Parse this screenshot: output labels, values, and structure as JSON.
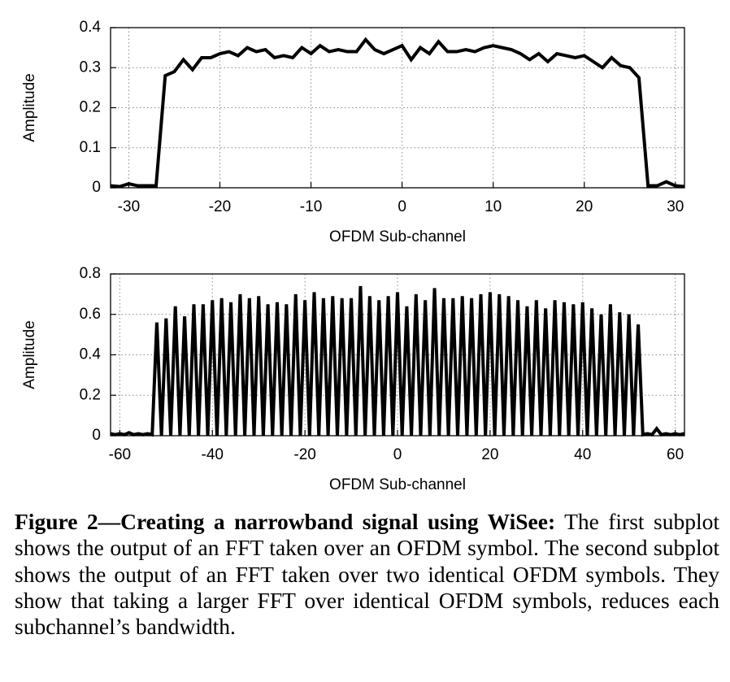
{
  "chart_data": [
    {
      "type": "line",
      "xlabel": "OFDM Sub-channel",
      "ylabel": "Amplitude",
      "color": "#000000",
      "grid": true,
      "xlim": [
        -32,
        31
      ],
      "ylim": [
        0,
        0.4
      ],
      "xticks": [
        -30,
        -20,
        -10,
        0,
        10,
        20,
        30
      ],
      "yticks": [
        0,
        0.1,
        0.2,
        0.3,
        0.4
      ],
      "x": [
        -32,
        -31,
        -30,
        -29,
        -28,
        -27,
        -26,
        -25,
        -24,
        -23,
        -22,
        -21,
        -20,
        -19,
        -18,
        -17,
        -16,
        -15,
        -14,
        -13,
        -12,
        -11,
        -10,
        -9,
        -8,
        -7,
        -6,
        -5,
        -4,
        -3,
        -2,
        -1,
        0,
        1,
        2,
        3,
        4,
        5,
        6,
        7,
        8,
        9,
        10,
        11,
        12,
        13,
        14,
        15,
        16,
        17,
        18,
        19,
        20,
        21,
        22,
        23,
        24,
        25,
        26,
        27,
        28,
        29,
        30,
        31
      ],
      "values": [
        0.005,
        0.003,
        0.01,
        0.005,
        0.005,
        0.005,
        0.28,
        0.29,
        0.32,
        0.295,
        0.325,
        0.325,
        0.335,
        0.34,
        0.33,
        0.35,
        0.34,
        0.345,
        0.325,
        0.33,
        0.325,
        0.35,
        0.335,
        0.355,
        0.34,
        0.345,
        0.34,
        0.34,
        0.37,
        0.345,
        0.335,
        0.345,
        0.355,
        0.32,
        0.35,
        0.335,
        0.365,
        0.34,
        0.34,
        0.345,
        0.34,
        0.35,
        0.355,
        0.35,
        0.345,
        0.335,
        0.32,
        0.335,
        0.315,
        0.335,
        0.33,
        0.325,
        0.33,
        0.315,
        0.3,
        0.325,
        0.305,
        0.3,
        0.275,
        0.005,
        0.005,
        0.015,
        0.005,
        0.003
      ]
    },
    {
      "type": "line",
      "xlabel": "OFDM Sub-channel",
      "ylabel": "Amplitude",
      "color": "#000000",
      "grid": true,
      "xlim": [
        -62,
        62
      ],
      "ylim": [
        0,
        0.8
      ],
      "xticks": [
        -60,
        -40,
        -20,
        0,
        20,
        40,
        60
      ],
      "yticks": [
        0,
        0.2,
        0.4,
        0.6,
        0.8
      ],
      "x": [
        -62,
        -61,
        -60,
        -59,
        -58,
        -57,
        -56,
        -55,
        -54,
        -53,
        -52,
        -51,
        -50,
        -49,
        -48,
        -47,
        -46,
        -45,
        -44,
        -43,
        -42,
        -41,
        -40,
        -39,
        -38,
        -37,
        -36,
        -35,
        -34,
        -33,
        -32,
        -31,
        -30,
        -29,
        -28,
        -27,
        -26,
        -25,
        -24,
        -23,
        -22,
        -21,
        -20,
        -19,
        -18,
        -17,
        -16,
        -15,
        -14,
        -13,
        -12,
        -11,
        -10,
        -9,
        -8,
        -7,
        -6,
        -5,
        -4,
        -3,
        -2,
        -1,
        0,
        1,
        2,
        3,
        4,
        5,
        6,
        7,
        8,
        9,
        10,
        11,
        12,
        13,
        14,
        15,
        16,
        17,
        18,
        19,
        20,
        21,
        22,
        23,
        24,
        25,
        26,
        27,
        28,
        29,
        30,
        31,
        32,
        33,
        34,
        35,
        36,
        37,
        38,
        39,
        40,
        41,
        42,
        43,
        44,
        45,
        46,
        47,
        48,
        49,
        50,
        51,
        52,
        53,
        54,
        55,
        56,
        57,
        58,
        59,
        60,
        61,
        62
      ],
      "values": [
        0.01,
        0.005,
        0.01,
        0.005,
        0.015,
        0.005,
        0.01,
        0.005,
        0.01,
        0.005,
        0.56,
        0,
        0.58,
        0,
        0.64,
        0,
        0.59,
        0,
        0.65,
        0,
        0.65,
        0,
        0.67,
        0,
        0.68,
        0,
        0.66,
        0,
        0.7,
        0,
        0.68,
        0,
        0.69,
        0,
        0.65,
        0,
        0.66,
        0,
        0.65,
        0,
        0.7,
        0,
        0.67,
        0,
        0.71,
        0,
        0.68,
        0,
        0.69,
        0,
        0.68,
        0,
        0.68,
        0,
        0.74,
        0,
        0.69,
        0,
        0.67,
        0,
        0.69,
        0,
        0.71,
        0,
        0.64,
        0,
        0.7,
        0,
        0.67,
        0,
        0.73,
        0,
        0.68,
        0,
        0.68,
        0,
        0.69,
        0,
        0.68,
        0,
        0.7,
        0,
        0.71,
        0,
        0.7,
        0,
        0.69,
        0,
        0.67,
        0,
        0.64,
        0,
        0.67,
        0,
        0.63,
        0,
        0.67,
        0,
        0.66,
        0,
        0.65,
        0,
        0.66,
        0,
        0.63,
        0,
        0.6,
        0,
        0.65,
        0,
        0.61,
        0,
        0.6,
        0,
        0.55,
        0.005,
        0.01,
        0.005,
        0.035,
        0.005,
        0.01,
        0.005,
        0.01,
        0.005,
        0.01
      ]
    }
  ],
  "caption": {
    "label": "Figure 2—Creating a narrowband signal using WiSee:",
    "text": "The first subplot shows the output of an FFT taken over an OFDM symbol. The second subplot shows the output of an FFT taken over two identical OFDM symbols. They show that taking a larger FFT over identical OFDM symbols, reduces each subchannel’s bandwidth."
  }
}
